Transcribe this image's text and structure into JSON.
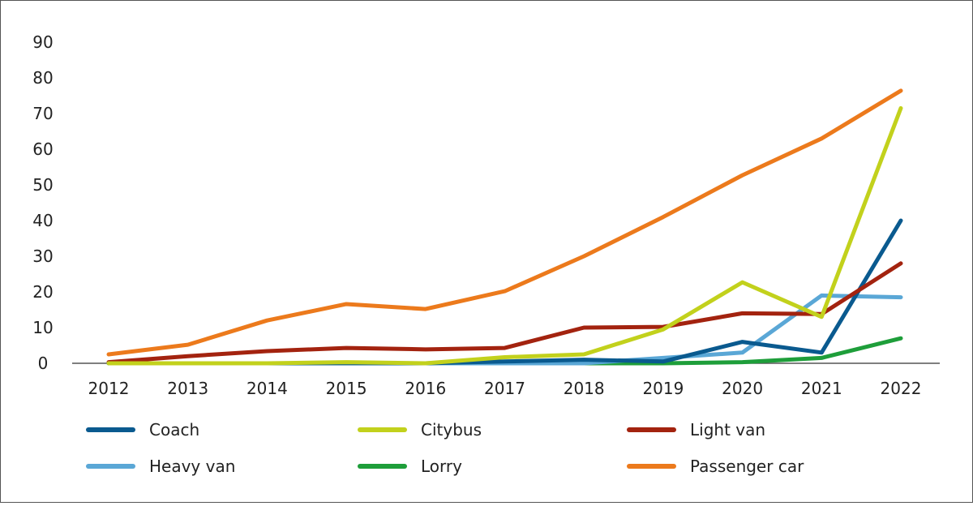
{
  "chart_data": {
    "type": "line",
    "title": "",
    "xlabel": "",
    "ylabel": "",
    "ylim": [
      0,
      90
    ],
    "yticks": [
      0,
      10,
      20,
      30,
      40,
      50,
      60,
      70,
      80,
      90
    ],
    "x": [
      "2012",
      "2013",
      "2014",
      "2015",
      "2016",
      "2017",
      "2018",
      "2019",
      "2020",
      "2021",
      "2022"
    ],
    "grid": false,
    "legend_position": "bottom",
    "series": [
      {
        "name": "Coach",
        "color": "#0a5a8f",
        "values": [
          0,
          0,
          0,
          0,
          0,
          0.5,
          1,
          0.5,
          6,
          3,
          40
        ]
      },
      {
        "name": "Citybus",
        "color": "#c2d11c",
        "values": [
          0,
          0,
          0,
          0.3,
          0,
          1.7,
          2.5,
          9.5,
          22.7,
          13,
          71.5
        ]
      },
      {
        "name": "Light van",
        "color": "#a3230f",
        "values": [
          0.3,
          2,
          3.4,
          4.3,
          3.9,
          4.3,
          10,
          10.2,
          14,
          13.8,
          28
        ]
      },
      {
        "name": "Heavy van",
        "color": "#5aa7d6",
        "values": [
          0,
          0,
          0,
          0,
          0,
          0,
          0,
          1.5,
          3,
          19,
          18.5
        ]
      },
      {
        "name": "Lorry",
        "color": "#1e9e3a",
        "values": [
          0,
          0,
          0,
          0,
          0,
          0,
          0,
          0,
          0.3,
          1.5,
          7
        ]
      },
      {
        "name": "Passenger car",
        "color": "#ec7a1c",
        "values": [
          2.5,
          5.2,
          12,
          16.6,
          15.2,
          20.2,
          30,
          41,
          52.7,
          63,
          76.4
        ]
      }
    ]
  }
}
